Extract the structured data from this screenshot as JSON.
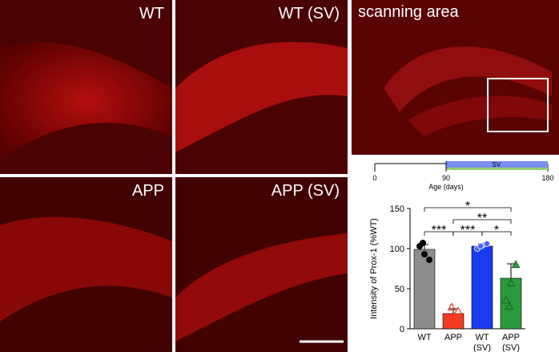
{
  "panels": {
    "wt": {
      "label": "WT"
    },
    "wt_sv": {
      "label": "WT (SV)"
    },
    "app": {
      "label": "APP"
    },
    "app_sv": {
      "label": "APP (SV)"
    },
    "scan": {
      "label": "scanning area"
    }
  },
  "timeline": {
    "ticks": [
      "0",
      "90",
      "180"
    ],
    "bar_label": "SV",
    "axis_label": "Age (days)",
    "bar_color": "#7b8ef0",
    "bar_underline_color": "#8fd07a"
  },
  "chart_data": {
    "type": "bar",
    "ylabel": "Intensity of Prox-1 (%WT)",
    "ylim": [
      0,
      150
    ],
    "yticks": [
      "0",
      "50",
      "100",
      "150"
    ],
    "categories": [
      "WT",
      "APP",
      "WT\n(SV)",
      "APP\n(SV)"
    ],
    "category_lines": [
      [
        "WT"
      ],
      [
        "APP"
      ],
      [
        "WT",
        "(SV)"
      ],
      [
        "APP",
        "(SV)"
      ]
    ],
    "values": [
      99,
      19,
      103,
      63
    ],
    "errors": [
      6,
      6,
      3,
      18
    ],
    "colors": [
      "#8c8c8c",
      "#f03c22",
      "#1a3cf0",
      "#2a9a3a"
    ],
    "marker_shapes": [
      "circle",
      "triangle",
      "circle",
      "triangle"
    ],
    "points": [
      [
        103,
        93,
        86,
        107
      ],
      [
        9,
        13,
        22,
        27
      ],
      [
        100,
        104,
        106,
        103
      ],
      [
        36,
        57,
        80,
        28
      ]
    ],
    "significance": [
      {
        "pair": [
          0,
          3
        ],
        "label": "*"
      },
      {
        "pair": [
          1,
          3
        ],
        "label": "**"
      },
      {
        "pair": [
          0,
          1
        ],
        "label": "***"
      },
      {
        "pair": [
          1,
          2
        ],
        "label": "***"
      },
      {
        "pair": [
          2,
          3
        ],
        "label": "*"
      }
    ]
  }
}
